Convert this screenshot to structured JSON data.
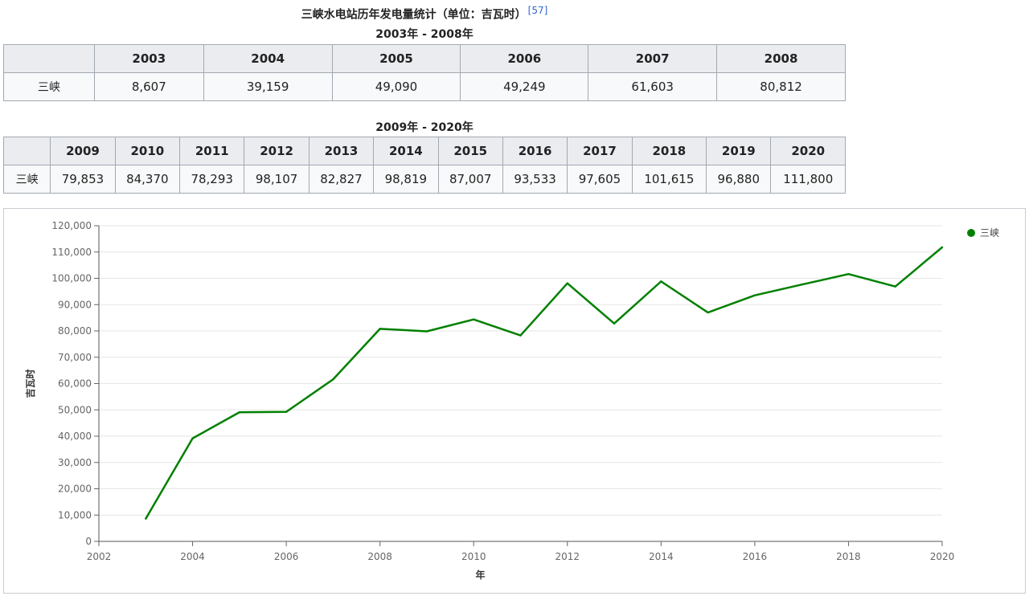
{
  "title": "三峡水电站历年发电量统计（单位：吉瓦时）",
  "citation": "[57]",
  "table1": {
    "caption": "2003年 - 2008年",
    "row_label": "三峡",
    "years": [
      "2003",
      "2004",
      "2005",
      "2006",
      "2007",
      "2008"
    ],
    "values": [
      "8,607",
      "39,159",
      "49,090",
      "49,249",
      "61,603",
      "80,812"
    ]
  },
  "table2": {
    "caption": "2009年 - 2020年",
    "row_label": "三峡",
    "years": [
      "2009",
      "2010",
      "2011",
      "2012",
      "2013",
      "2014",
      "2015",
      "2016",
      "2017",
      "2018",
      "2019",
      "2020"
    ],
    "values": [
      "79,853",
      "84,370",
      "78,293",
      "98,107",
      "82,827",
      "98,819",
      "87,007",
      "93,533",
      "97,605",
      "101,615",
      "96,880",
      "111,800"
    ]
  },
  "chart_data": {
    "type": "line",
    "title": "",
    "xlabel": "年",
    "ylabel": "吉瓦时",
    "x": [
      2003,
      2004,
      2005,
      2006,
      2007,
      2008,
      2009,
      2010,
      2011,
      2012,
      2013,
      2014,
      2015,
      2016,
      2017,
      2018,
      2019,
      2020
    ],
    "series": [
      {
        "name": "三峡",
        "color": "#008000",
        "values": [
          8607,
          39159,
          49090,
          49249,
          61603,
          80812,
          79853,
          84370,
          78293,
          98107,
          82827,
          98819,
          87007,
          93533,
          97605,
          101615,
          96880,
          111800
        ]
      }
    ],
    "xlim": [
      2002,
      2020
    ],
    "ylim": [
      0,
      120000
    ],
    "xticks": [
      "2002",
      "2004",
      "2006",
      "2008",
      "2010",
      "2012",
      "2014",
      "2016",
      "2018",
      "2020"
    ],
    "yticks": [
      "0",
      "10,000",
      "20,000",
      "30,000",
      "40,000",
      "50,000",
      "60,000",
      "70,000",
      "80,000",
      "90,000",
      "100,000",
      "110,000",
      "120,000"
    ],
    "grid": true,
    "legend": "top-right"
  }
}
